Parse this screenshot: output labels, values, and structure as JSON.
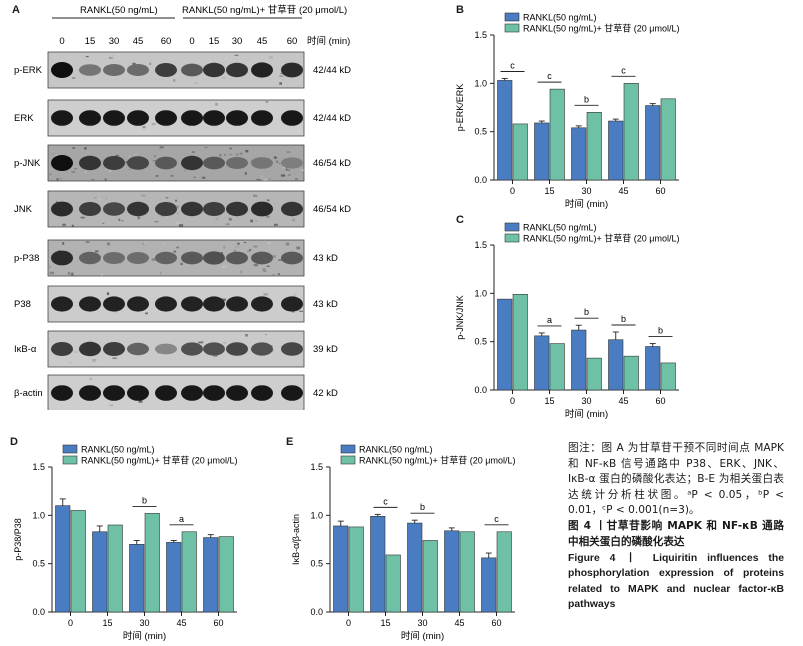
{
  "colors": {
    "blue": "#4a7cc2",
    "green": "#6ec1a7",
    "axis": "#222222"
  },
  "panel_a": {
    "label": "A",
    "group1_label": "RANKL(50 ng/mL)",
    "group2_label": "RANKL(50 ng/mL)+ 甘草苷 (20 μmol/L)",
    "timepoints": [
      "0",
      "15",
      "30",
      "45",
      "60",
      "0",
      "15",
      "30",
      "45",
      "60"
    ],
    "time_unit": "时间 (min)",
    "blots": [
      {
        "name": "p-ERK",
        "size": "42/44 kD",
        "intensity": [
          1.0,
          0.45,
          0.5,
          0.5,
          0.75,
          0.6,
          0.8,
          0.8,
          0.9,
          0.85
        ],
        "noise": 0.15
      },
      {
        "name": "ERK",
        "size": "42/44 kD",
        "intensity": [
          0.95,
          0.95,
          0.95,
          0.95,
          0.95,
          0.95,
          0.95,
          0.95,
          0.95,
          0.95
        ],
        "noise": 0.05
      },
      {
        "name": "p-JNK",
        "size": "46/54 kD",
        "intensity": [
          1.0,
          0.8,
          0.75,
          0.7,
          0.6,
          0.8,
          0.6,
          0.5,
          0.45,
          0.4
        ],
        "noise": 0.55
      },
      {
        "name": "JNK",
        "size": "46/54 kD",
        "intensity": [
          0.85,
          0.75,
          0.7,
          0.8,
          0.75,
          0.8,
          0.75,
          0.8,
          0.85,
          0.8
        ],
        "noise": 0.35
      },
      {
        "name": "p-P38",
        "size": "43 kD",
        "intensity": [
          0.85,
          0.55,
          0.5,
          0.5,
          0.55,
          0.6,
          0.65,
          0.6,
          0.6,
          0.6
        ],
        "noise": 0.4
      },
      {
        "name": "P38",
        "size": "43 kD",
        "intensity": [
          0.9,
          0.9,
          0.9,
          0.9,
          0.9,
          0.9,
          0.9,
          0.9,
          0.9,
          0.9
        ],
        "noise": 0.08
      },
      {
        "name": "IκB-α",
        "size": "39 kD",
        "intensity": [
          0.75,
          0.8,
          0.75,
          0.55,
          0.35,
          0.65,
          0.65,
          0.7,
          0.65,
          0.7
        ],
        "noise": 0.1
      },
      {
        "name": "β-actin",
        "size": "42 kD",
        "intensity": [
          0.95,
          0.95,
          0.95,
          0.95,
          0.95,
          0.95,
          0.95,
          0.95,
          0.95,
          0.95
        ],
        "noise": 0.05
      }
    ]
  },
  "chart_data": [
    {
      "panel": "B",
      "type": "bar",
      "ylabel": "p-ERK/ERK",
      "xlabel": "时间 (min)",
      "categories": [
        "0",
        "15",
        "30",
        "45",
        "60"
      ],
      "yticks": [
        "0.0",
        "0.5",
        "1.0",
        "1.5"
      ],
      "ylim": [
        0,
        1.5
      ],
      "series": [
        {
          "name": "RANKL(50 ng/mL)",
          "values": [
            1.03,
            0.59,
            0.54,
            0.61,
            0.77
          ],
          "errors": [
            0.02,
            0.02,
            0.02,
            0.02,
            0.02
          ]
        },
        {
          "name": "RANKL(50 ng/mL)+ 甘草苷 (20 μmol/L)",
          "values": [
            0.58,
            0.94,
            0.7,
            1.0,
            0.84
          ],
          "errors": [
            0,
            0,
            0,
            0,
            0
          ]
        }
      ],
      "annotations": [
        "c",
        "c",
        "b",
        "c",
        ""
      ],
      "legend": "top-right"
    },
    {
      "panel": "C",
      "type": "bar",
      "ylabel": "p-JNK/JNK",
      "xlabel": "时间 (min)",
      "categories": [
        "0",
        "15",
        "30",
        "45",
        "60"
      ],
      "yticks": [
        "0.0",
        "0.5",
        "1.0",
        "1.5"
      ],
      "ylim": [
        0,
        1.5
      ],
      "series": [
        {
          "name": "RANKL(50 ng/mL)",
          "values": [
            0.94,
            0.56,
            0.62,
            0.52,
            0.45
          ],
          "errors": [
            0,
            0.03,
            0.05,
            0.08,
            0.03
          ]
        },
        {
          "name": "RANKL(50 ng/mL)+ 甘草苷 (20 μmol/L)",
          "values": [
            0.99,
            0.48,
            0.33,
            0.35,
            0.28
          ],
          "errors": [
            0,
            0,
            0,
            0,
            0
          ]
        }
      ],
      "annotations": [
        "",
        "a",
        "b",
        "b",
        "b"
      ],
      "legend": "top-right"
    },
    {
      "panel": "D",
      "type": "bar",
      "ylabel": "p-P38/P38",
      "xlabel": "时间 (min)",
      "categories": [
        "0",
        "15",
        "30",
        "45",
        "60"
      ],
      "yticks": [
        "0.0",
        "0.5",
        "1.0",
        "1.5"
      ],
      "ylim": [
        0,
        1.5
      ],
      "series": [
        {
          "name": "RANKL(50 ng/mL)",
          "values": [
            1.1,
            0.83,
            0.7,
            0.72,
            0.77
          ],
          "errors": [
            0.07,
            0.06,
            0.04,
            0.02,
            0.03
          ]
        },
        {
          "name": "RANKL(50 ng/mL)+ 甘草苷 (20 μmol/L)",
          "values": [
            1.05,
            0.9,
            1.02,
            0.83,
            0.78
          ],
          "errors": [
            0,
            0,
            0,
            0,
            0
          ]
        }
      ],
      "annotations": [
        "",
        "",
        "b",
        "a",
        ""
      ],
      "legend": "top-right"
    },
    {
      "panel": "E",
      "type": "bar",
      "ylabel": "IκB-α/β-actin",
      "xlabel": "时间 (min)",
      "categories": [
        "0",
        "15",
        "30",
        "45",
        "60"
      ],
      "yticks": [
        "0.0",
        "0.5",
        "1.0",
        "1.5"
      ],
      "ylim": [
        0,
        1.5
      ],
      "series": [
        {
          "name": "RANKL(50 ng/mL)",
          "values": [
            0.89,
            0.99,
            0.92,
            0.84,
            0.56
          ],
          "errors": [
            0.05,
            0.02,
            0.03,
            0.03,
            0.05
          ]
        },
        {
          "name": "RANKL(50 ng/mL)+ 甘草苷 (20 μmol/L)",
          "values": [
            0.88,
            0.59,
            0.74,
            0.83,
            0.83
          ],
          "errors": [
            0,
            0,
            0,
            0,
            0
          ]
        }
      ],
      "annotations": [
        "",
        "c",
        "b",
        "",
        "c"
      ],
      "legend": "top-right"
    }
  ],
  "caption": {
    "zh_body": "图注：图 A 为甘草苷干预不同时间点 MAPK 和 NF-κB 信号通路中 P38、ERK、JNK、IκB-α 蛋白的磷酸化表达；B-E 为相关蛋白表达统计分析柱状图。ᵃP < 0.05，ᵇP < 0.01，ᶜP < 0.001(n=3)。",
    "zh_title": "图 4 丨甘草苷影响 MAPK 和 NF-κB 通路中相关蛋白的磷酸化表达",
    "en_title": "Figure 4 丨 Liquiritin influences the phosphorylation expression of proteins related to MAPK and nuclear factor-κB pathways"
  }
}
